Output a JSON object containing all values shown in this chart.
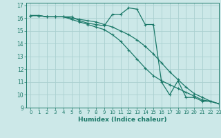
{
  "xlabel": "Humidex (Indice chaleur)",
  "xlim": [
    -0.5,
    23
  ],
  "ylim": [
    9,
    17.2
  ],
  "background_color": "#cce8e8",
  "grid_color": "#aad0d0",
  "line_color": "#1a7868",
  "line1_x": [
    0,
    1,
    2,
    3,
    4,
    5,
    6,
    7,
    8,
    9,
    10,
    11,
    12,
    13,
    14,
    15,
    16,
    17,
    18,
    19,
    20,
    21,
    22,
    23
  ],
  "line1_y": [
    16.2,
    16.2,
    16.1,
    16.1,
    16.1,
    16.0,
    15.9,
    15.8,
    15.7,
    15.5,
    15.3,
    15.0,
    14.7,
    14.3,
    13.8,
    13.2,
    12.5,
    11.8,
    11.2,
    10.6,
    10.1,
    9.8,
    9.5,
    9.3
  ],
  "line2_x": [
    0,
    1,
    2,
    3,
    4,
    5,
    6,
    7,
    8,
    9,
    10,
    11,
    12,
    13,
    14,
    15,
    16,
    17,
    18,
    19,
    20,
    21,
    22,
    23
  ],
  "line2_y": [
    16.2,
    16.2,
    16.1,
    16.1,
    16.1,
    15.9,
    15.7,
    15.5,
    15.3,
    15.1,
    14.7,
    14.2,
    13.5,
    12.8,
    12.1,
    11.5,
    11.1,
    10.8,
    10.5,
    10.2,
    9.9,
    9.6,
    9.5,
    9.3
  ],
  "line3_x": [
    0,
    1,
    2,
    3,
    4,
    5,
    6,
    7,
    8,
    9,
    10,
    11,
    12,
    13,
    14,
    15,
    16,
    17,
    18,
    19,
    20,
    21,
    22,
    23
  ],
  "line3_y": [
    16.2,
    16.2,
    16.1,
    16.1,
    16.1,
    16.1,
    15.8,
    15.6,
    15.5,
    15.4,
    16.3,
    16.3,
    16.8,
    16.7,
    15.5,
    15.5,
    11.0,
    10.0,
    11.1,
    9.8,
    9.8,
    9.5,
    9.5,
    9.3
  ],
  "yticks": [
    9,
    10,
    11,
    12,
    13,
    14,
    15,
    16,
    17
  ],
  "xticks": [
    0,
    1,
    2,
    3,
    4,
    5,
    6,
    7,
    8,
    9,
    10,
    11,
    12,
    13,
    14,
    15,
    16,
    17,
    18,
    19,
    20,
    21,
    22,
    23
  ]
}
